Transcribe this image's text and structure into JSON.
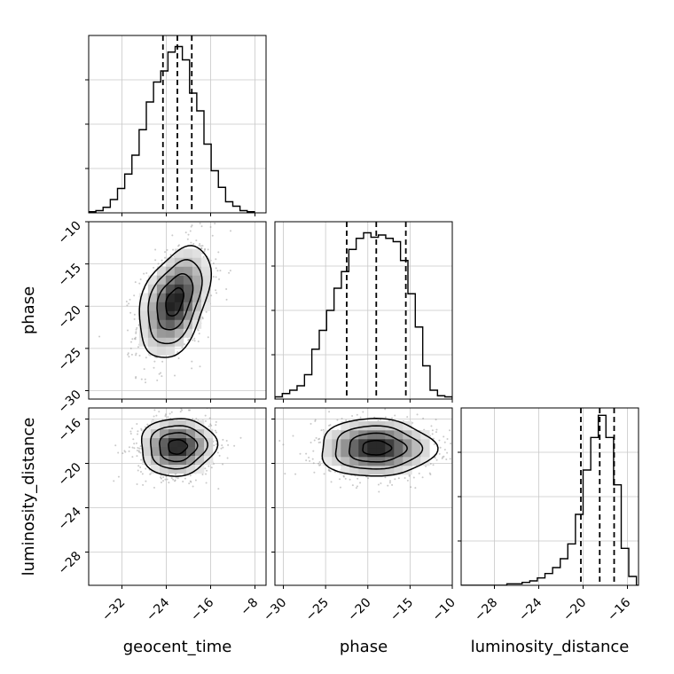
{
  "chart_data": {
    "type": "corner",
    "parameters": [
      "geocent_time",
      "phase",
      "luminosity_distance"
    ],
    "axis_labels": {
      "geocent_time": "geocent_time",
      "phase": "phase",
      "luminosity_distance": "luminosity_distance"
    },
    "ranges": {
      "geocent_time": [
        -38,
        -6
      ],
      "phase": [
        -31,
        -10
      ],
      "luminosity_distance": [
        -31,
        -15
      ]
    },
    "ticks": {
      "geocent_time": [
        -32,
        -24,
        -16,
        -8
      ],
      "phase": [
        -30,
        -25,
        -20,
        -15,
        -10
      ],
      "luminosity_distance": [
        -28,
        -24,
        -20,
        -16
      ]
    },
    "tick_labels": {
      "geocent_time": [
        "−32",
        "−24",
        "−16",
        "−8"
      ],
      "phase": [
        "−30",
        "−25",
        "−20",
        "−15",
        "−10"
      ],
      "luminosity_distance": [
        "−28",
        "−24",
        "−20",
        "−16"
      ]
    },
    "quantiles": {
      "geocent_time": [
        -24.6,
        -22.0,
        -19.4
      ],
      "phase": [
        -22.5,
        -19.0,
        -15.5
      ],
      "luminosity_distance": [
        -20.2,
        -18.5,
        -17.2
      ]
    },
    "histograms": {
      "geocent_time": {
        "edges": [
          -38,
          -36.7,
          -35.4,
          -34.1,
          -32.8,
          -31.5,
          -30.2,
          -28.9,
          -27.6,
          -26.3,
          -25,
          -23.7,
          -22.4,
          -21.1,
          -19.8,
          -18.5,
          -17.2,
          -15.9,
          -14.6,
          -13.3,
          -12,
          -10.7,
          -9.4,
          -8.1
        ],
        "counts": [
          1,
          2,
          5,
          12,
          22,
          35,
          52,
          75,
          100,
          118,
          128,
          145,
          150,
          138,
          108,
          92,
          62,
          38,
          23,
          10,
          6,
          2,
          1
        ],
        "ylim": [
          0,
          160
        ]
      },
      "phase": {
        "edges": [
          -31,
          -30.13,
          -29.25,
          -28.38,
          -27.5,
          -26.63,
          -25.75,
          -24.88,
          -24,
          -23.13,
          -22.25,
          -21.38,
          -20.5,
          -19.63,
          -18.75,
          -17.88,
          -17,
          -16.13,
          -15.25,
          -14.38,
          -13.5,
          -12.63,
          -11.75,
          -10.88,
          -10
        ],
        "counts": [
          2,
          5,
          8,
          12,
          22,
          45,
          62,
          80,
          100,
          115,
          135,
          145,
          150,
          146,
          148,
          145,
          142,
          125,
          95,
          65,
          30,
          8,
          3,
          2
        ],
        "ylim": [
          0,
          160
        ]
      },
      "luminosity_distance": {
        "edges": [
          -31,
          -30.31,
          -29.63,
          -28.94,
          -28.25,
          -27.56,
          -26.88,
          -26.19,
          -25.5,
          -24.81,
          -24.13,
          -23.44,
          -22.75,
          -22.06,
          -21.38,
          -20.69,
          -20,
          -19.31,
          -18.63,
          -17.94,
          -17.25,
          -16.56,
          -15.88,
          -15.19,
          -14.5
        ],
        "counts": [
          0,
          0,
          0,
          0,
          0,
          0,
          1,
          1,
          2,
          3,
          5,
          8,
          12,
          18,
          28,
          48,
          78,
          100,
          115,
          100,
          68,
          25,
          6,
          0
        ],
        "ylim": [
          0,
          120
        ]
      }
    },
    "joint": [
      {
        "x": "geocent_time",
        "y": "phase",
        "mean": [
          -22.5,
          -19.5
        ],
        "std": [
          3.2,
          3.3
        ],
        "corr": 0.4,
        "levels": [
          "0.5",
          "1.0",
          "1.5",
          "2.0"
        ]
      },
      {
        "x": "geocent_time",
        "y": "luminosity_distance",
        "mean": [
          -22.0,
          -18.5
        ],
        "std": [
          3.4,
          1.3
        ],
        "corr": 0.05,
        "levels": [
          "0.5",
          "1.0",
          "1.5",
          "2.0"
        ]
      },
      {
        "x": "phase",
        "y": "luminosity_distance",
        "mean": [
          -19.0,
          -18.6
        ],
        "std": [
          3.4,
          1.3
        ],
        "corr": 0.0,
        "levels": [
          "0.5",
          "1.0",
          "1.5",
          "2.0"
        ]
      }
    ],
    "grid": true,
    "histogram_color": "#000000",
    "scatter_color": "#8a8a8a",
    "contour_color": "#000000"
  }
}
